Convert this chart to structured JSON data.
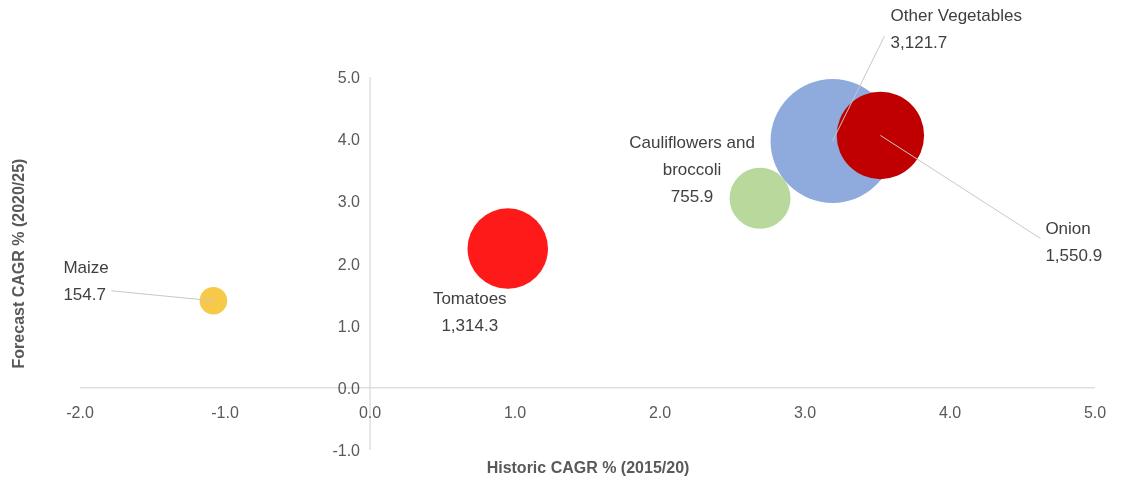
{
  "chart_data": {
    "type": "bubble",
    "xlabel": "Historic CAGR % (2015/20)",
    "ylabel": "Forecast CAGR % (2020/25)",
    "series": [
      {
        "name": "Maize",
        "color": "#f7c948",
        "x": [
          -1.08
        ],
        "values": [
          1.4
        ],
        "sizes": [
          154.7
        ],
        "value_labels": [
          "154.7"
        ]
      },
      {
        "name": "Tomatoes",
        "color": "#ff1a1a",
        "x": [
          0.95
        ],
        "values": [
          2.24
        ],
        "sizes": [
          1314.3
        ],
        "value_labels": [
          "1,314.3"
        ]
      },
      {
        "name": "Cauliflowers and broccoli",
        "color": "#b8d99b",
        "x": [
          2.69
        ],
        "values": [
          3.05
        ],
        "sizes": [
          755.9
        ],
        "value_labels": [
          "755.9"
        ]
      },
      {
        "name": "Other Vegetables",
        "color": "#8faadc",
        "x": [
          3.19
        ],
        "values": [
          3.97
        ],
        "sizes": [
          3121.7
        ],
        "value_labels": [
          "3,121.7"
        ]
      },
      {
        "name": "Onion",
        "color": "#c00000",
        "x": [
          3.52
        ],
        "values": [
          4.06
        ],
        "sizes": [
          1550.9
        ],
        "value_labels": [
          "1,550.9"
        ]
      }
    ],
    "xlim": [
      -2,
      5
    ],
    "ylim": [
      -1,
      5
    ],
    "xticks": [
      {
        "value": -2,
        "label": "-2.0"
      },
      {
        "value": -1,
        "label": "-1.0"
      },
      {
        "value": 0,
        "label": "0.0"
      },
      {
        "value": 1,
        "label": "1.0"
      },
      {
        "value": 2,
        "label": "2.0"
      },
      {
        "value": 3,
        "label": "3.0"
      },
      {
        "value": 4,
        "label": "4.0"
      },
      {
        "value": 5,
        "label": "5.0"
      }
    ],
    "yticks": [
      {
        "value": -1,
        "label": "-1.0"
      },
      {
        "value": 0,
        "label": "0.0"
      },
      {
        "value": 1,
        "label": "1.0"
      },
      {
        "value": 2,
        "label": "2.0"
      },
      {
        "value": 3,
        "label": "3.0"
      },
      {
        "value": 4,
        "label": "4.0"
      },
      {
        "value": 5,
        "label": "5.0"
      }
    ]
  }
}
